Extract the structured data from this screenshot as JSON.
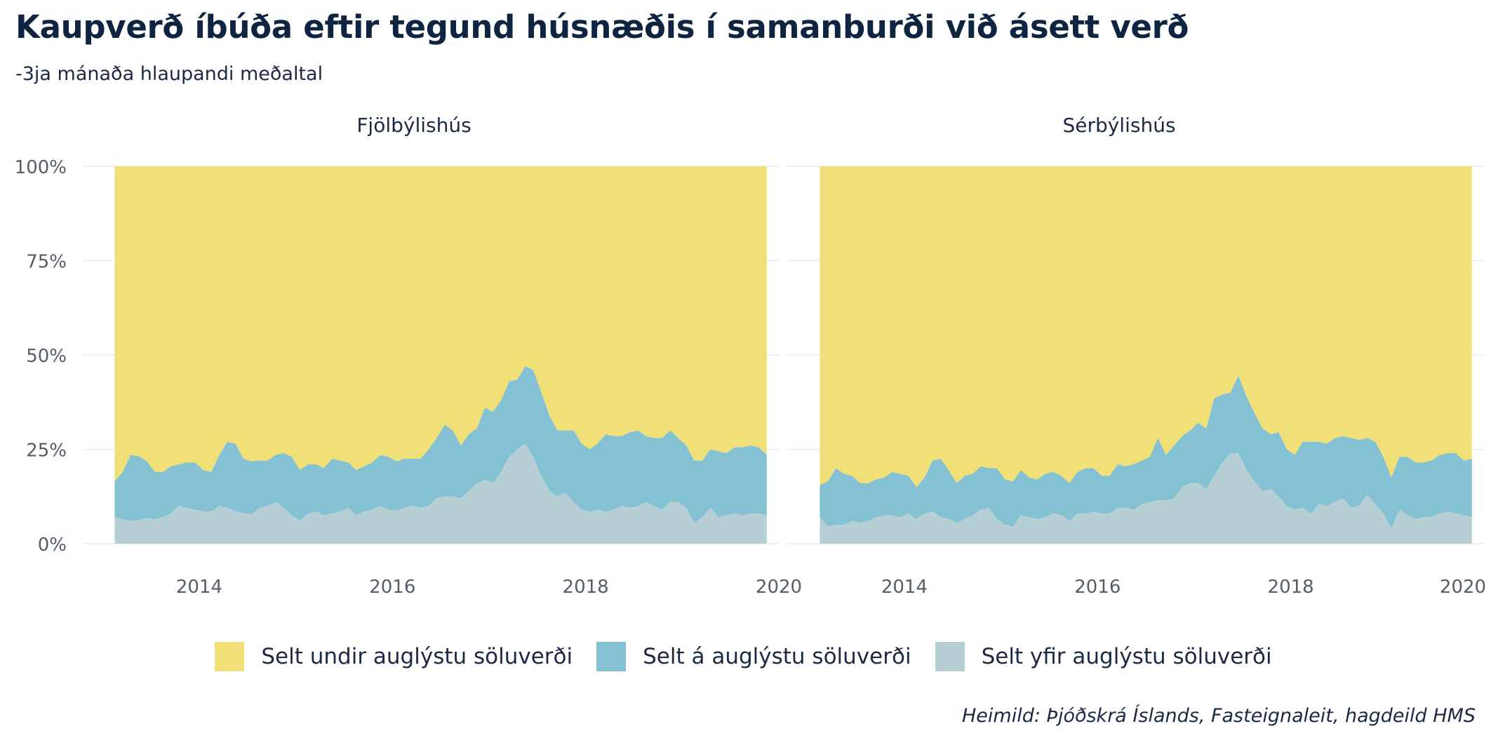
{
  "title": "Kaupverð íbúða eftir tegund húsnæðis í samanburði við ásett verð",
  "subtitle": "-3ja mánaða hlaupandi meðaltal",
  "caption": "Heimild: Þjóðskrá Íslands, Fasteignaleit, hagdeild HMS",
  "colors": {
    "under": "#f1df77",
    "at": "#84c1d3",
    "over": "#b5cfd4",
    "grid": "#e8ecef",
    "axis_text": "#555d66"
  },
  "legend": [
    {
      "key": "under",
      "label": "Selt undir auglýstu söluverði"
    },
    {
      "key": "at",
      "label": "Selt á auglýstu söluverði"
    },
    {
      "key": "over",
      "label": "Selt yfir auglýstu söluverði"
    }
  ],
  "chart_data": [
    {
      "type": "area",
      "stacked": true,
      "title": "Fjölbýlishús",
      "xlim": [
        2013.1,
        2020
      ],
      "ylim": [
        0,
        1
      ],
      "x_ticks": [
        2014,
        2016,
        2018,
        2020
      ],
      "y_ticks": [
        0,
        0.25,
        0.5,
        0.75,
        1.0
      ],
      "y_tick_labels": [
        "0%",
        "25%",
        "50%",
        "75%",
        "100%"
      ],
      "x": [
        2013.125,
        2013.208,
        2013.292,
        2013.375,
        2013.458,
        2013.542,
        2013.625,
        2013.708,
        2013.792,
        2013.875,
        2013.958,
        2014.042,
        2014.125,
        2014.208,
        2014.292,
        2014.375,
        2014.458,
        2014.542,
        2014.625,
        2014.708,
        2014.792,
        2014.875,
        2014.958,
        2015.042,
        2015.125,
        2015.208,
        2015.292,
        2015.375,
        2015.458,
        2015.542,
        2015.625,
        2015.708,
        2015.792,
        2015.875,
        2015.958,
        2016.042,
        2016.125,
        2016.208,
        2016.292,
        2016.375,
        2016.458,
        2016.542,
        2016.625,
        2016.708,
        2016.792,
        2016.875,
        2016.958,
        2017.042,
        2017.125,
        2017.208,
        2017.292,
        2017.375,
        2017.458,
        2017.542,
        2017.625,
        2017.708,
        2017.792,
        2017.875,
        2017.958,
        2018.042,
        2018.125,
        2018.208,
        2018.292,
        2018.375,
        2018.458,
        2018.542,
        2018.625,
        2018.708,
        2018.792,
        2018.875,
        2018.958,
        2019.042,
        2019.125,
        2019.208,
        2019.292,
        2019.375,
        2019.458,
        2019.542,
        2019.625,
        2019.708,
        2019.792,
        2019.875
      ],
      "series": [
        {
          "name": "Selt yfir auglýstu söluverði",
          "key": "over",
          "values": [
            0.07,
            0.065,
            0.06,
            0.062,
            0.068,
            0.065,
            0.07,
            0.08,
            0.1,
            0.095,
            0.09,
            0.085,
            0.085,
            0.1,
            0.095,
            0.085,
            0.08,
            0.078,
            0.095,
            0.1,
            0.11,
            0.095,
            0.075,
            0.06,
            0.08,
            0.085,
            0.075,
            0.08,
            0.085,
            0.095,
            0.075,
            0.085,
            0.09,
            0.1,
            0.09,
            0.088,
            0.095,
            0.1,
            0.095,
            0.1,
            0.12,
            0.125,
            0.125,
            0.12,
            0.14,
            0.16,
            0.17,
            0.16,
            0.19,
            0.23,
            0.25,
            0.265,
            0.23,
            0.18,
            0.14,
            0.125,
            0.135,
            0.11,
            0.09,
            0.085,
            0.09,
            0.085,
            0.09,
            0.1,
            0.095,
            0.1,
            0.11,
            0.1,
            0.09,
            0.11,
            0.11,
            0.095,
            0.055,
            0.07,
            0.095,
            0.07,
            0.075,
            0.08,
            0.075,
            0.08,
            0.08,
            0.075
          ]
        },
        {
          "name": "Selt á auglýstu söluverði",
          "key": "at",
          "values": [
            0.095,
            0.125,
            0.175,
            0.17,
            0.15,
            0.125,
            0.12,
            0.125,
            0.11,
            0.12,
            0.125,
            0.11,
            0.105,
            0.135,
            0.175,
            0.18,
            0.145,
            0.14,
            0.125,
            0.12,
            0.125,
            0.145,
            0.155,
            0.135,
            0.13,
            0.125,
            0.125,
            0.145,
            0.135,
            0.12,
            0.12,
            0.12,
            0.125,
            0.135,
            0.14,
            0.13,
            0.13,
            0.125,
            0.13,
            0.15,
            0.16,
            0.19,
            0.175,
            0.14,
            0.15,
            0.145,
            0.19,
            0.19,
            0.19,
            0.2,
            0.185,
            0.205,
            0.23,
            0.22,
            0.2,
            0.175,
            0.165,
            0.19,
            0.175,
            0.165,
            0.175,
            0.205,
            0.195,
            0.185,
            0.2,
            0.2,
            0.175,
            0.18,
            0.19,
            0.19,
            0.17,
            0.165,
            0.165,
            0.15,
            0.155,
            0.175,
            0.165,
            0.175,
            0.18,
            0.18,
            0.175,
            0.16
          ]
        }
      ]
    },
    {
      "type": "area",
      "stacked": true,
      "title": "Sérbýlishús",
      "xlim": [
        2013.1,
        2020
      ],
      "ylim": [
        0,
        1
      ],
      "x_ticks": [
        2014,
        2016,
        2018,
        2020
      ],
      "y_ticks": [
        0,
        0.25,
        0.5,
        0.75,
        1.0
      ],
      "y_tick_labels": [
        "0%",
        "25%",
        "50%",
        "75%",
        "100%"
      ],
      "x": [
        2013.125,
        2013.208,
        2013.292,
        2013.375,
        2013.458,
        2013.542,
        2013.625,
        2013.708,
        2013.792,
        2013.875,
        2013.958,
        2014.042,
        2014.125,
        2014.208,
        2014.292,
        2014.375,
        2014.458,
        2014.542,
        2014.625,
        2014.708,
        2014.792,
        2014.875,
        2014.958,
        2015.042,
        2015.125,
        2015.208,
        2015.292,
        2015.375,
        2015.458,
        2015.542,
        2015.625,
        2015.708,
        2015.792,
        2015.875,
        2015.958,
        2016.042,
        2016.125,
        2016.208,
        2016.292,
        2016.375,
        2016.458,
        2016.542,
        2016.625,
        2016.708,
        2016.792,
        2016.875,
        2016.958,
        2017.042,
        2017.125,
        2017.208,
        2017.292,
        2017.375,
        2017.458,
        2017.542,
        2017.625,
        2017.708,
        2017.792,
        2017.875,
        2017.958,
        2018.042,
        2018.125,
        2018.208,
        2018.292,
        2018.375,
        2018.458,
        2018.542,
        2018.625,
        2018.708,
        2018.792,
        2018.875,
        2018.958,
        2019.042,
        2019.125,
        2019.208,
        2019.292,
        2019.375,
        2019.458,
        2019.542,
        2019.625,
        2019.708,
        2019.792,
        2019.875
      ],
      "series": [
        {
          "name": "Selt yfir auglýstu söluverði",
          "key": "over",
          "values": [
            0.07,
            0.045,
            0.05,
            0.05,
            0.06,
            0.055,
            0.06,
            0.07,
            0.075,
            0.075,
            0.07,
            0.08,
            0.065,
            0.08,
            0.085,
            0.07,
            0.065,
            0.055,
            0.065,
            0.075,
            0.09,
            0.095,
            0.065,
            0.05,
            0.045,
            0.075,
            0.07,
            0.065,
            0.07,
            0.08,
            0.075,
            0.06,
            0.08,
            0.08,
            0.085,
            0.08,
            0.08,
            0.095,
            0.095,
            0.09,
            0.105,
            0.11,
            0.115,
            0.115,
            0.12,
            0.15,
            0.16,
            0.16,
            0.145,
            0.18,
            0.215,
            0.24,
            0.24,
            0.195,
            0.165,
            0.14,
            0.145,
            0.125,
            0.1,
            0.09,
            0.095,
            0.08,
            0.105,
            0.1,
            0.11,
            0.12,
            0.095,
            0.1,
            0.13,
            0.105,
            0.08,
            0.04,
            0.09,
            0.075,
            0.065,
            0.07,
            0.07,
            0.08,
            0.085,
            0.08,
            0.075,
            0.07
          ]
        },
        {
          "name": "Selt á auglýstu söluverði",
          "key": "at",
          "values": [
            0.085,
            0.12,
            0.15,
            0.135,
            0.12,
            0.105,
            0.1,
            0.1,
            0.1,
            0.115,
            0.115,
            0.1,
            0.085,
            0.095,
            0.135,
            0.155,
            0.13,
            0.105,
            0.115,
            0.11,
            0.115,
            0.105,
            0.135,
            0.12,
            0.12,
            0.12,
            0.105,
            0.105,
            0.115,
            0.11,
            0.105,
            0.1,
            0.11,
            0.12,
            0.115,
            0.1,
            0.1,
            0.115,
            0.11,
            0.12,
            0.115,
            0.12,
            0.165,
            0.12,
            0.14,
            0.135,
            0.14,
            0.16,
            0.16,
            0.205,
            0.18,
            0.16,
            0.205,
            0.195,
            0.18,
            0.165,
            0.145,
            0.17,
            0.15,
            0.145,
            0.175,
            0.19,
            0.165,
            0.165,
            0.17,
            0.165,
            0.185,
            0.175,
            0.15,
            0.165,
            0.15,
            0.135,
            0.14,
            0.155,
            0.15,
            0.145,
            0.15,
            0.155,
            0.155,
            0.16,
            0.145,
            0.155
          ]
        },
        {
          "name": "Selt undir auglýstu söluverði",
          "key": "under",
          "values": "remainder-to-100%"
        }
      ]
    }
  ]
}
